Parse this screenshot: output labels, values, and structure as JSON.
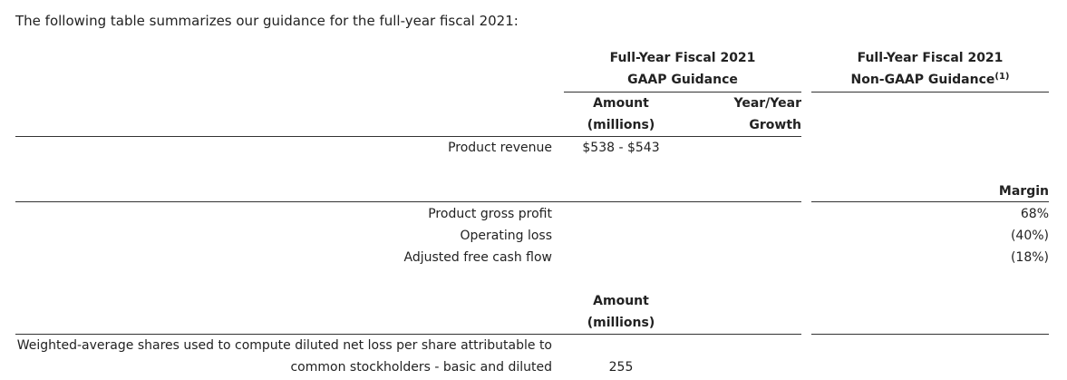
{
  "intro": "The following table summarizes our guidance for the full-year fiscal 2021:",
  "gaap_header": {
    "line1": "Full-Year Fiscal 2021",
    "line2": "GAAP Guidance"
  },
  "nongaap_header": {
    "line1": "Full-Year Fiscal 2021",
    "line2": "Non-GAAP Guidance",
    "footnote": "(1)"
  },
  "revenue_section": {
    "amount_label_1": "Amount",
    "amount_label_2": "(millions)",
    "growth_label_1": "Year/Year",
    "growth_label_2": "Growth",
    "row_label": "Product revenue",
    "row_value": "$538 - $543"
  },
  "margin_section": {
    "margin_label": "Margin",
    "rows": [
      {
        "label": "Product gross profit",
        "value": "68%"
      },
      {
        "label": "Operating loss",
        "value": "(40%)"
      },
      {
        "label": "Adjusted free cash flow",
        "value": "(18%)"
      }
    ]
  },
  "shares_section": {
    "amount_label_1": "Amount",
    "amount_label_2": "(millions)",
    "row_label_1": "Weighted-average shares used to compute diluted net loss per share attributable to",
    "row_label_2": "common stockholders - basic and diluted",
    "row_value": "255"
  }
}
